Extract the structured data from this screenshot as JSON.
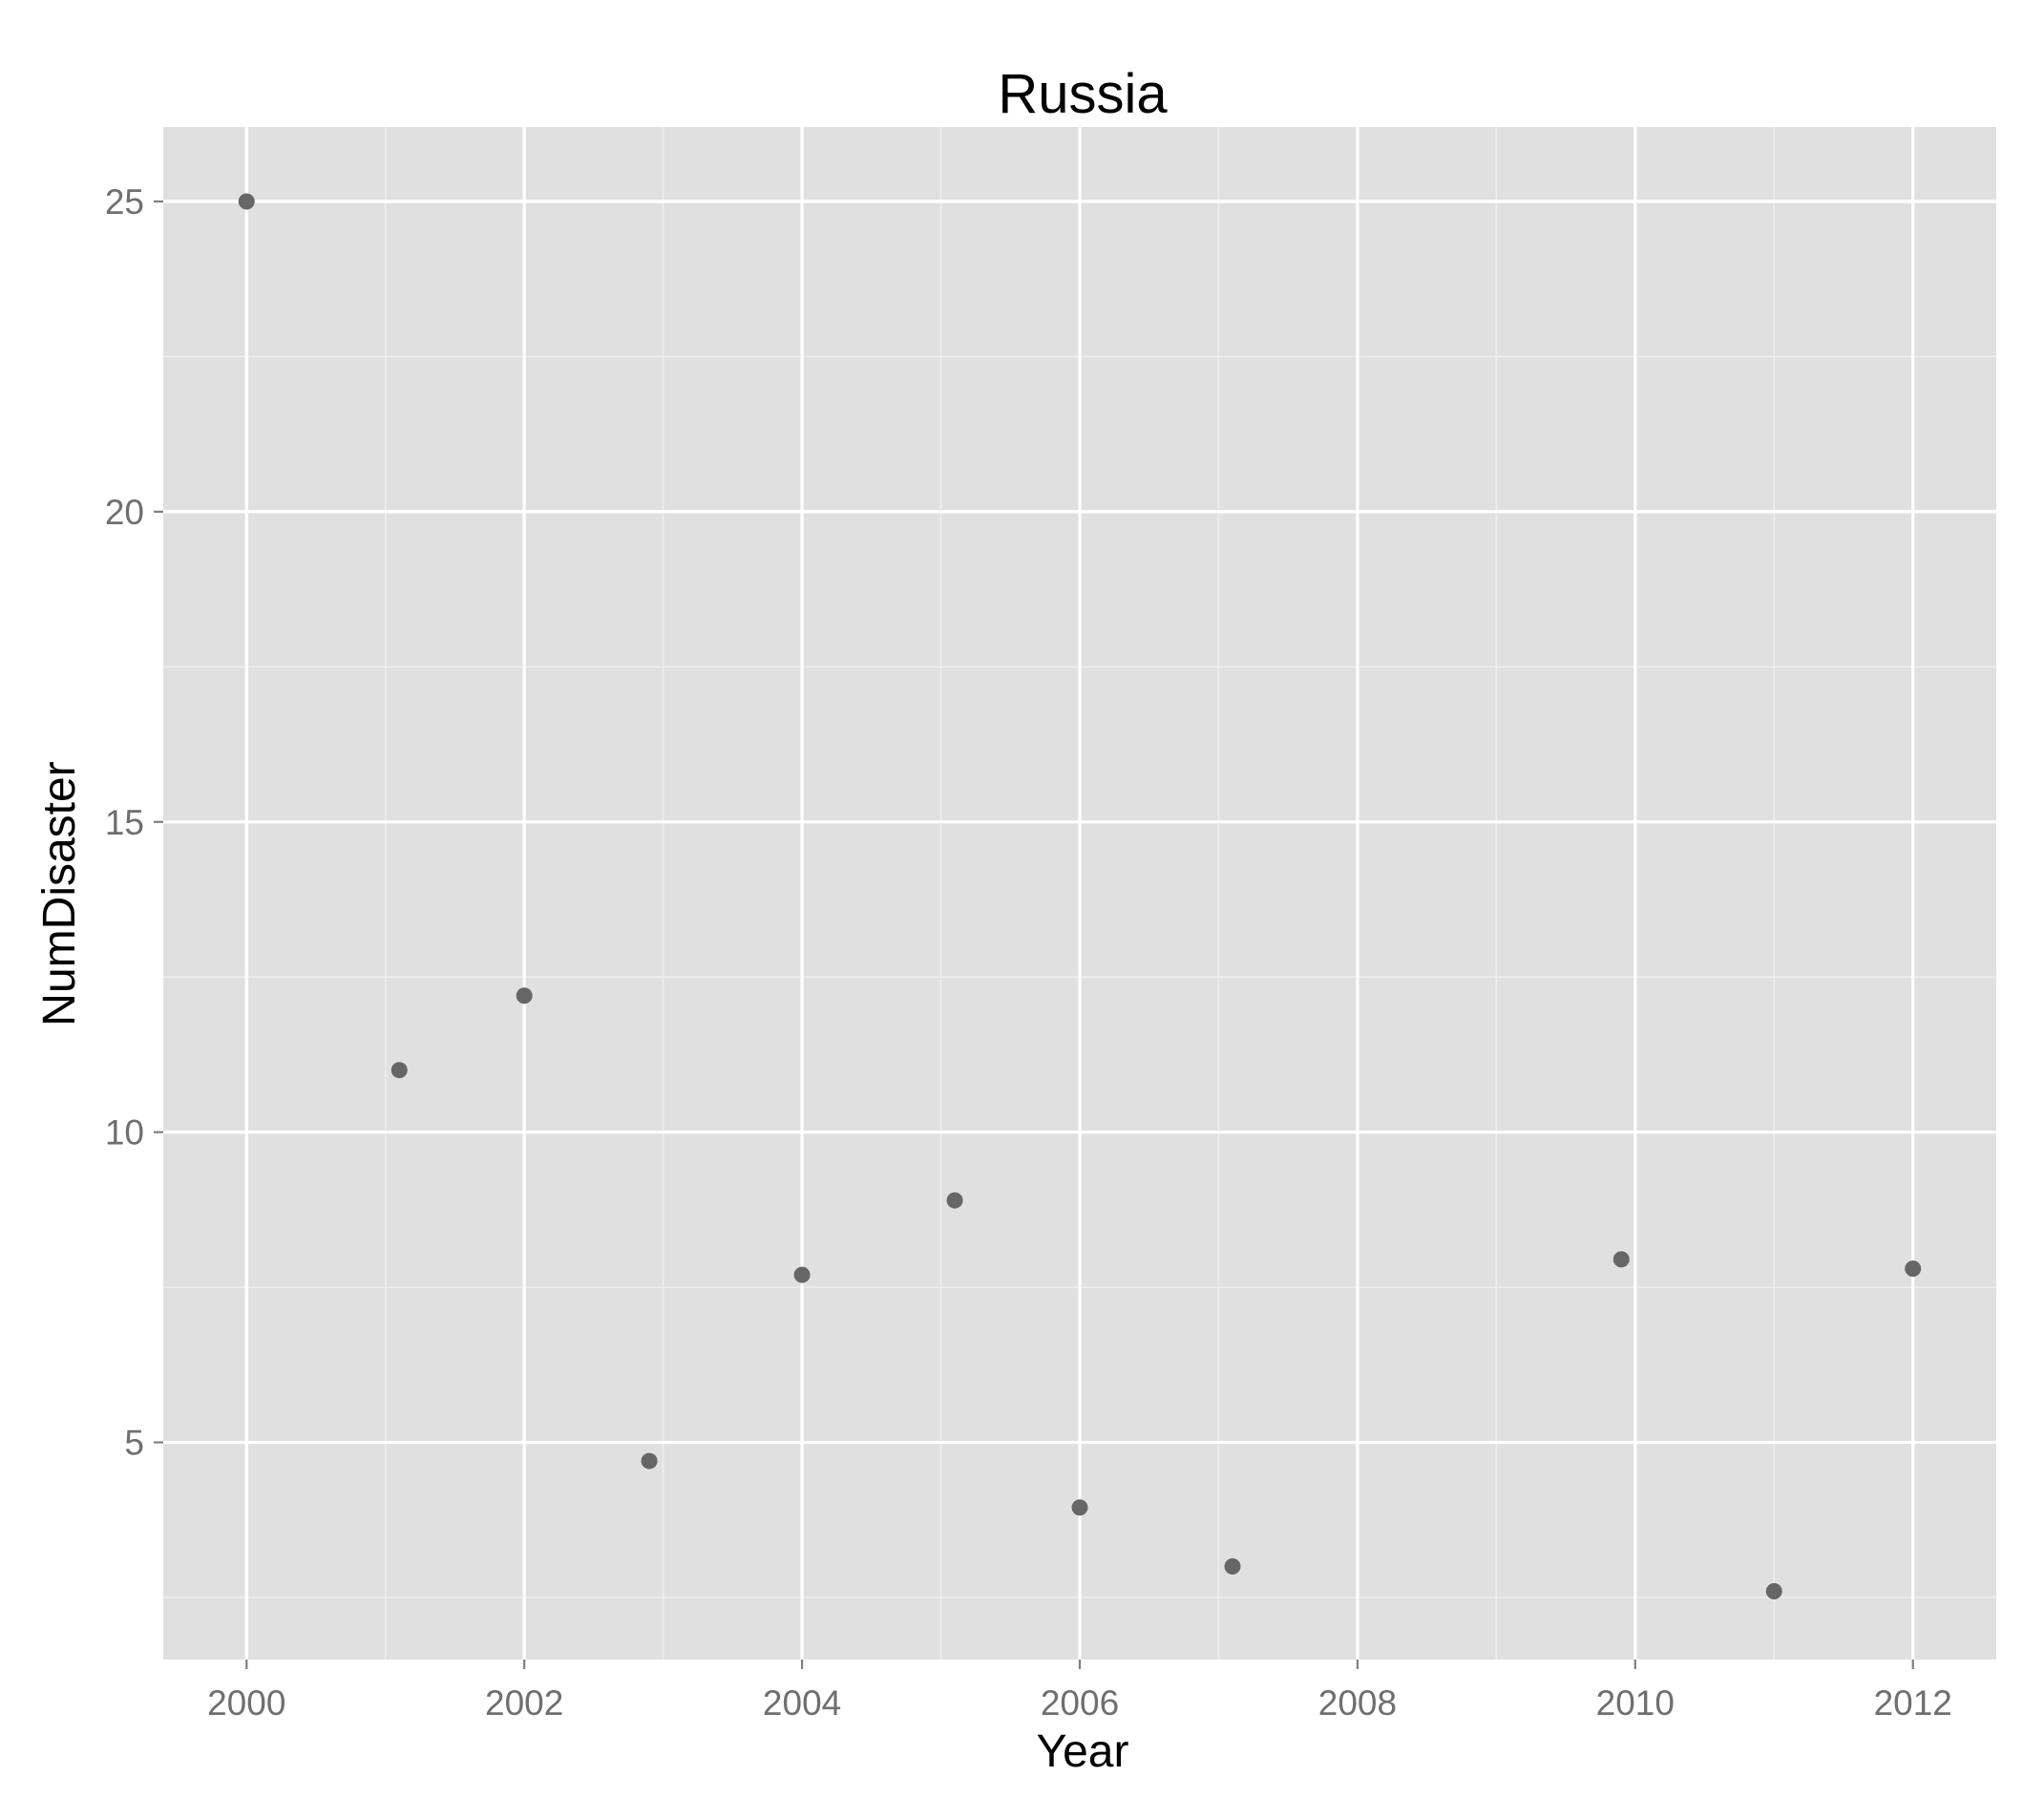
{
  "chart_data": {
    "type": "scatter",
    "title": "Russia",
    "xlabel": "Year",
    "ylabel": "NumDisaster",
    "x_ticks": [
      "2000",
      "2002",
      "2004",
      "2006",
      "2008",
      "2010",
      "2012"
    ],
    "y_ticks": [
      "5",
      "10",
      "15",
      "20",
      "25"
    ],
    "xlim": [
      1999.4,
      2012.6
    ],
    "ylim": [
      1.5,
      26.2
    ],
    "grid": true,
    "legend": "none",
    "colors": {
      "panel": "#E0E0E0",
      "grid_major": "#FFFFFF",
      "grid_minor": "#EEEEEE",
      "point": "#666666",
      "tick_label": "#6F6F6F"
    },
    "series": [
      {
        "points": [
          {
            "x": 2000.0,
            "y": 25.0
          },
          {
            "x": 2001.1,
            "y": 11.0
          },
          {
            "x": 2002.0,
            "y": 12.2
          },
          {
            "x": 2002.9,
            "y": 4.7
          },
          {
            "x": 2004.0,
            "y": 7.7
          },
          {
            "x": 2005.1,
            "y": 8.9
          },
          {
            "x": 2006.0,
            "y": 3.95
          },
          {
            "x": 2007.1,
            "y": 3.0
          },
          {
            "x": 2009.9,
            "y": 7.95
          },
          {
            "x": 2011.0,
            "y": 2.6
          },
          {
            "x": 2012.0,
            "y": 7.8
          }
        ]
      }
    ]
  }
}
